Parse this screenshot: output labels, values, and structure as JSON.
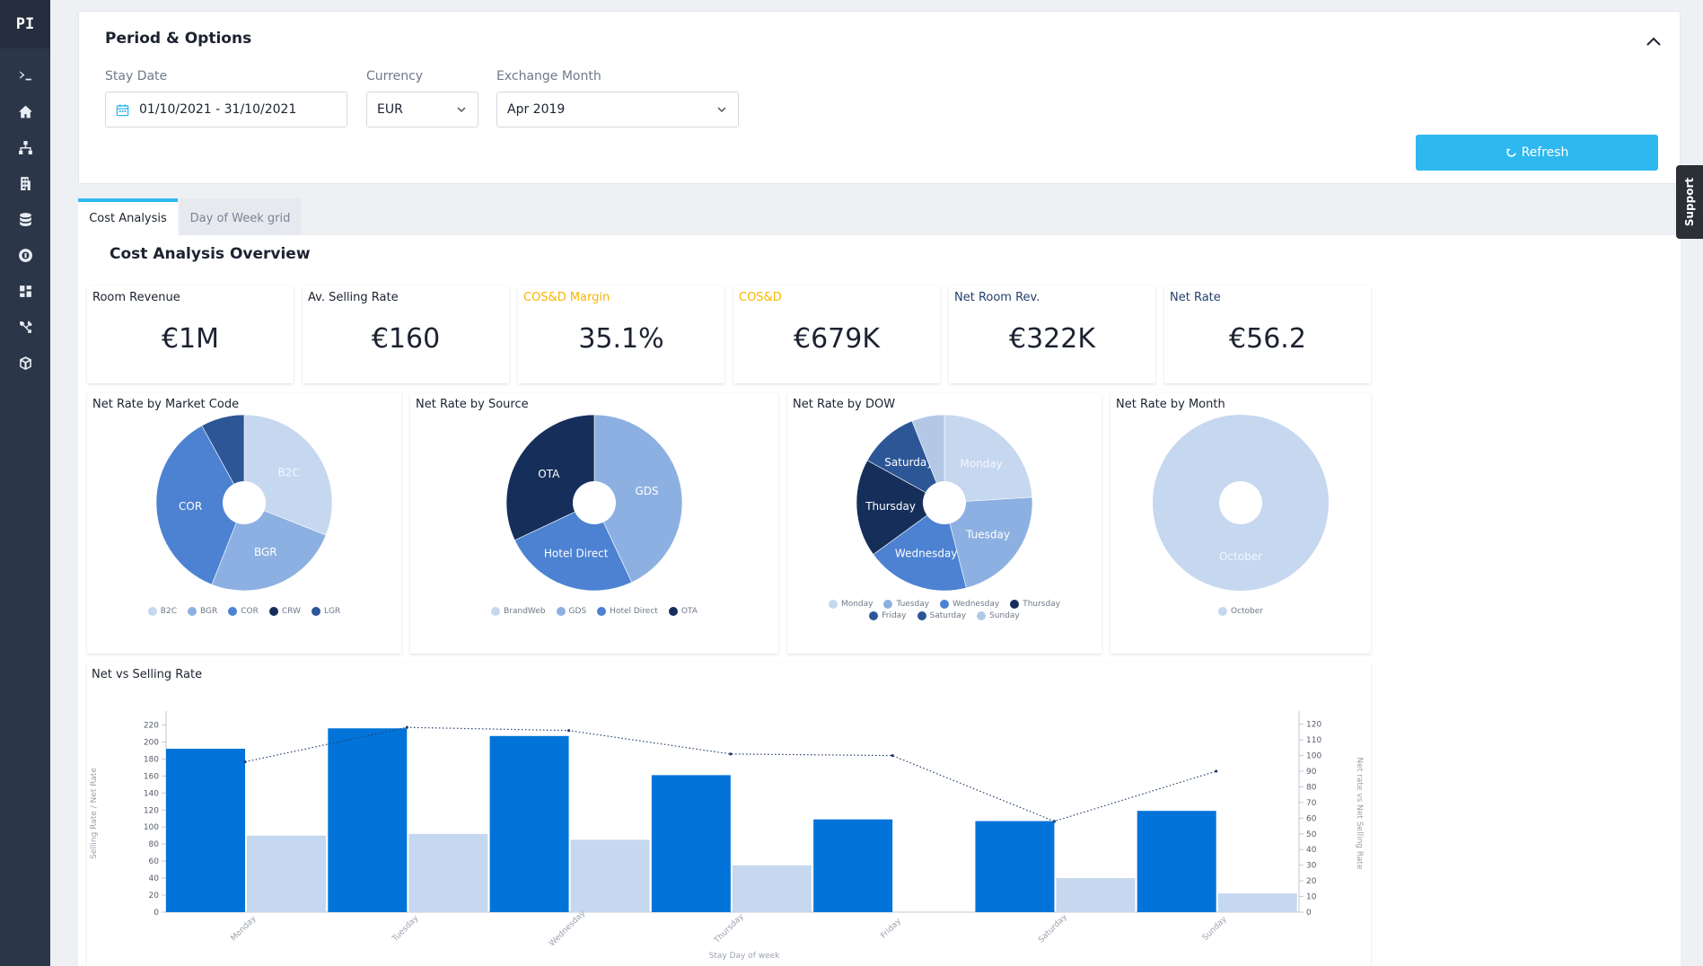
{
  "app": {
    "logo_text": "PI"
  },
  "sidebar": {
    "icons": [
      "terminal-icon",
      "home-icon",
      "hierarchy-icon",
      "building-icon",
      "database-icon",
      "gear-icon",
      "dashboard-icon",
      "tools-icon",
      "cube-icon"
    ]
  },
  "options": {
    "title": "Period & Options",
    "stay_date_label": "Stay Date",
    "stay_date_value": "01/10/2021 - 31/10/2021",
    "currency_label": "Currency",
    "currency_value": "EUR",
    "exchange_label": "Exchange Month",
    "exchange_value": "Apr 2019",
    "refresh_label": "Refresh"
  },
  "tabs": [
    {
      "label": "Cost Analysis"
    },
    {
      "label": "Day of Week grid"
    }
  ],
  "overview_title": "Cost Analysis Overview",
  "kpis": [
    {
      "label": "Room Revenue",
      "value": "€1M"
    },
    {
      "label": "Av. Selling Rate",
      "value": "€160"
    },
    {
      "label": "COS&D Margin",
      "value": "35.1%"
    },
    {
      "label": "COS&D",
      "value": "€679K"
    },
    {
      "label": "Net Room Rev.",
      "value": "€322K"
    },
    {
      "label": "Net Rate",
      "value": "€56.2"
    }
  ],
  "colors": {
    "c1": "#c6d7f0",
    "c2": "#8db0e2",
    "c3": "#4c82d1",
    "c4": "#162f5a",
    "c5": "#2c5696",
    "bar_dark": "#0274d9",
    "bar_light": "#c5d8f0",
    "accent": "#2eb8ef",
    "gold": "#f7b500"
  },
  "chart_data": [
    {
      "type": "pie",
      "title": "Net Rate by Market Code",
      "categories": [
        "B2C",
        "BGR",
        "COR",
        "CRW",
        "LGR"
      ],
      "slice_labels": [
        "B2C",
        "BGR",
        "COR",
        "",
        ""
      ],
      "values": [
        31,
        25,
        36,
        0,
        8
      ],
      "colors": [
        "#c6d7f0",
        "#8db0e2",
        "#4c82d1",
        "#162f5a",
        "#2c5696"
      ]
    },
    {
      "type": "pie",
      "title": "Net Rate by Source",
      "categories": [
        "BrandWeb",
        "GDS",
        "Hotel Direct",
        "OTA"
      ],
      "slice_labels": [
        "",
        "GDS",
        "Hotel Direct",
        "OTA"
      ],
      "values": [
        0,
        43,
        25,
        32
      ],
      "colors": [
        "#c6d7f0",
        "#8db0e2",
        "#4c82d1",
        "#162f5a"
      ]
    },
    {
      "type": "pie",
      "title": "Net Rate by DOW",
      "categories": [
        "Monday",
        "Tuesday",
        "Wednesday",
        "Thursday",
        "Friday",
        "Saturday",
        "Sunday"
      ],
      "slice_labels": [
        "Monday",
        "Tuesday",
        "Wednesday",
        "Thursday",
        "",
        "Saturday",
        ""
      ],
      "values": [
        24,
        22,
        19,
        18,
        0,
        11,
        6
      ],
      "colors": [
        "#c6d7f0",
        "#8db0e2",
        "#4c82d1",
        "#162f5a",
        "#2c5696",
        "#2c5696",
        "#b4c8e6"
      ]
    },
    {
      "type": "pie",
      "title": "Net Rate by Month",
      "categories": [
        "October"
      ],
      "slice_labels": [
        "October"
      ],
      "values": [
        100
      ],
      "colors": [
        "#c6d7f0"
      ]
    },
    {
      "type": "bar",
      "title": "Net vs Selling Rate",
      "xlabel": "Stay Day of week",
      "ylabel": "Selling Rate / Net Rate",
      "y2label": "Net rate vs Net Selling Rate",
      "categories": [
        "Monday",
        "Tuesday",
        "Wednesday",
        "Thursday",
        "Friday",
        "Saturday",
        "Sunday"
      ],
      "y_ticks": [
        0,
        20,
        40,
        60,
        80,
        100,
        120,
        140,
        160,
        180,
        200,
        220
      ],
      "y2_ticks": [
        0,
        10,
        20,
        30,
        40,
        50,
        60,
        70,
        80,
        90,
        100,
        110,
        120
      ],
      "ylim": [
        0,
        230
      ],
      "y2lim": [
        0,
        125
      ],
      "series": [
        {
          "values": [
            192,
            216,
            207,
            161,
            109,
            107,
            119
          ]
        },
        {
          "values": [
            90,
            92,
            85,
            55,
            0,
            40,
            22
          ]
        },
        {
          "values": [
            96,
            118,
            116,
            101,
            100,
            58,
            90
          ]
        }
      ]
    }
  ]
}
